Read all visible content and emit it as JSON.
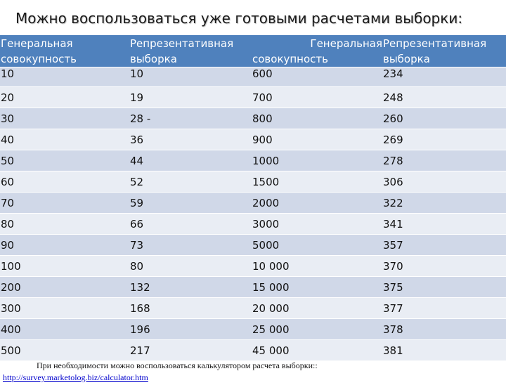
{
  "title": "Можно воспользоваться уже готовыми расчетами выборки:",
  "header": {
    "col1": "Генеральная совокупность",
    "col2": "Репрезентативная выборка",
    "col3_line1": "Генеральная",
    "col3_line2": "совокупность",
    "col4": "Репрезентативная выборка"
  },
  "first_row": [
    "10",
    "10",
    "600",
    "234"
  ],
  "rows": [
    [
      "20",
      "19",
      "700",
      "248"
    ],
    [
      "30",
      "28 -",
      "800",
      "260"
    ],
    [
      "40",
      "36",
      "900",
      "269"
    ],
    [
      "50",
      "44",
      "1000",
      "278"
    ],
    [
      "60",
      "52",
      "1500",
      "306"
    ],
    [
      "70",
      "59",
      "2000",
      "322"
    ],
    [
      "80",
      "66",
      "3000",
      "341"
    ],
    [
      "90",
      "73",
      "5000",
      "357"
    ],
    [
      "100",
      "80",
      "10 000",
      "370"
    ],
    [
      "200",
      "132",
      "15 000",
      "375"
    ],
    [
      "300",
      "168",
      "20 000",
      "377"
    ],
    [
      "400",
      "196",
      "25 000",
      "378"
    ],
    [
      "500",
      "217",
      "45 000",
      "381"
    ]
  ],
  "footnote": "При необходимости можно воспользоваться калькулятором расчета выборки::",
  "link": "http://survey.marketolog.biz/calculator.htm"
}
